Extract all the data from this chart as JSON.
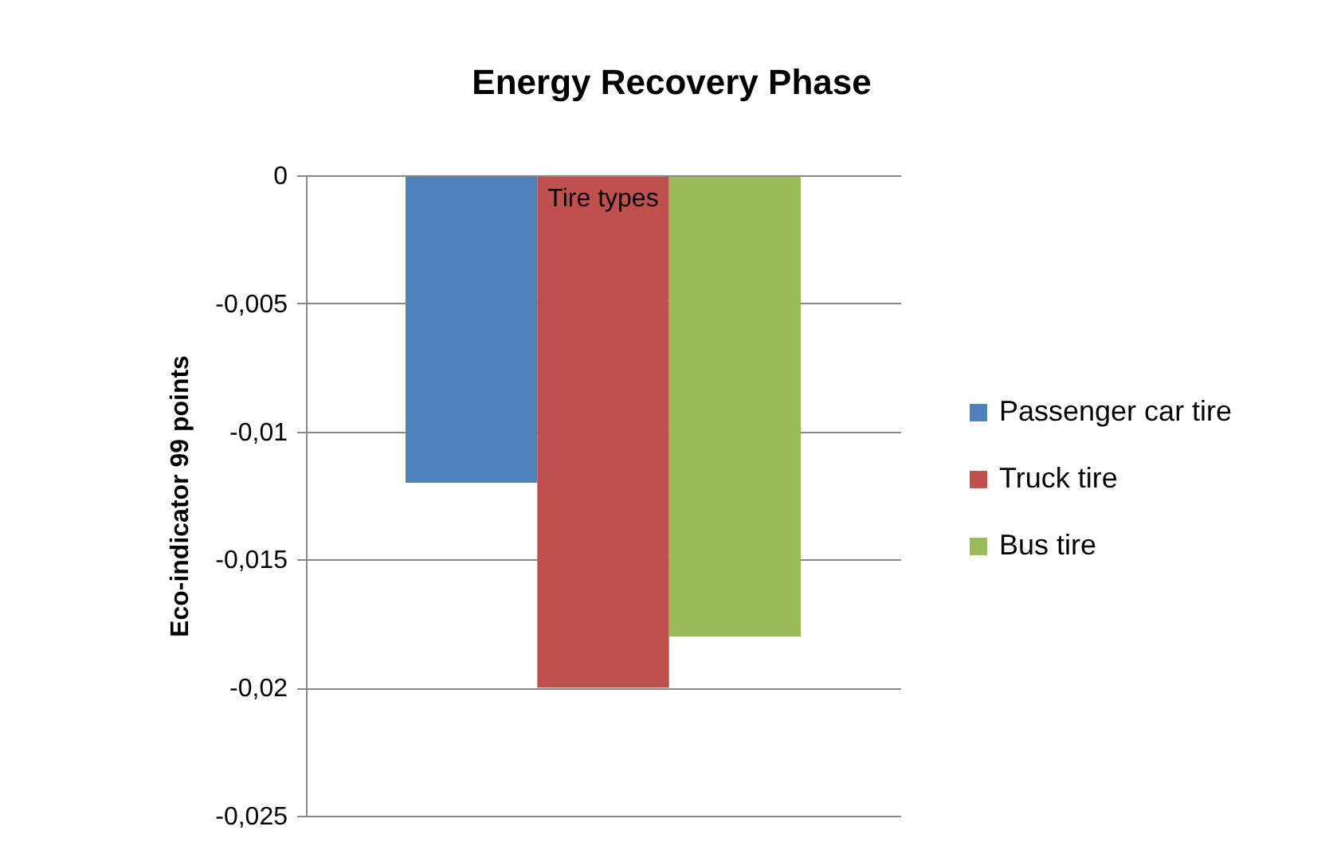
{
  "chart_data": {
    "type": "bar",
    "title": "Energy Recovery Phase",
    "ylabel": "Eco-indicator 99 points",
    "categories": [
      "Tire types"
    ],
    "series": [
      {
        "name": "Passenger car tire",
        "color": "#4f81bd",
        "values": [
          -0.012
        ]
      },
      {
        "name": "Truck tire",
        "color": "#c0504d",
        "values": [
          -0.02
        ]
      },
      {
        "name": "Bus tire",
        "color": "#9bbb59",
        "values": [
          -0.018
        ]
      }
    ],
    "ylim": [
      -0.025,
      0
    ],
    "yticks": [
      {
        "value": 0,
        "label": "0"
      },
      {
        "value": -0.005,
        "label": "-0,005"
      },
      {
        "value": -0.01,
        "label": "-0,01"
      },
      {
        "value": -0.015,
        "label": "-0,015"
      },
      {
        "value": -0.02,
        "label": "-0,02"
      },
      {
        "value": -0.025,
        "label": "-0,025"
      }
    ],
    "grid": true,
    "legend": "right"
  }
}
